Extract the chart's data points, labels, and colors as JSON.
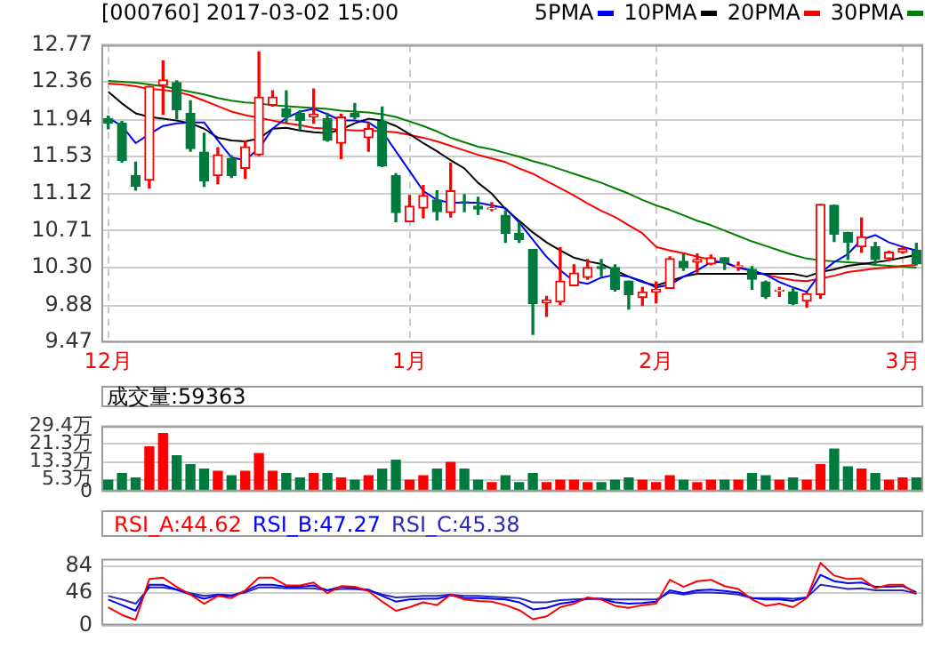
{
  "chart_data": [
    {
      "type": "candlestick",
      "title": "[000760] 2017-03-02 15:00",
      "legend": "top right",
      "grid": true,
      "marker": "none",
      "categories": [
        "12月",
        null,
        null,
        null,
        null,
        null,
        null,
        null,
        null,
        null,
        null,
        null,
        null,
        null,
        null,
        null,
        null,
        null,
        null,
        null,
        null,
        null,
        "1月",
        null,
        null,
        null,
        null,
        null,
        null,
        null,
        null,
        null,
        null,
        null,
        null,
        null,
        null,
        null,
        null,
        null,
        "2月",
        null,
        null,
        null,
        null,
        null,
        null,
        null,
        null,
        null,
        null,
        null,
        null,
        null,
        null,
        null,
        null,
        null,
        "3月",
        null
      ],
      "ylim": [
        9.47,
        12.77
      ],
      "yticks": [
        {
          "value": 9.47,
          "label": "9.47"
        },
        {
          "value": 9.88,
          "label": "9.88"
        },
        {
          "value": 10.3,
          "label": "10.30"
        },
        {
          "value": 10.71,
          "label": "10.71"
        },
        {
          "value": 11.12,
          "label": "11.12"
        },
        {
          "value": 11.53,
          "label": "11.53"
        },
        {
          "value": 11.94,
          "label": "11.94"
        },
        {
          "value": 12.36,
          "label": "12.36"
        },
        {
          "value": 12.77,
          "label": "12.77"
        }
      ],
      "ohlc": [
        [
          11.95,
          11.98,
          11.84,
          11.9
        ],
        [
          11.9,
          11.92,
          11.47,
          11.49
        ],
        [
          11.32,
          11.47,
          11.16,
          11.2
        ],
        [
          11.27,
          12.31,
          11.18,
          12.31
        ],
        [
          12.32,
          12.59,
          12.0,
          12.38
        ],
        [
          12.35,
          12.37,
          11.95,
          12.05
        ],
        [
          12.01,
          12.15,
          11.59,
          11.62
        ],
        [
          11.58,
          11.79,
          11.2,
          11.26
        ],
        [
          11.32,
          11.63,
          11.23,
          11.55
        ],
        [
          11.51,
          11.54,
          11.3,
          11.32
        ],
        [
          11.4,
          11.7,
          11.29,
          11.64
        ],
        [
          11.55,
          12.69,
          11.54,
          12.19
        ],
        [
          12.1,
          12.26,
          12.09,
          12.19
        ],
        [
          12.06,
          12.26,
          11.91,
          11.97
        ],
        [
          12.01,
          12.04,
          11.83,
          11.93
        ],
        [
          11.97,
          12.28,
          11.9,
          12.0
        ],
        [
          11.95,
          12.01,
          11.7,
          11.71
        ],
        [
          11.68,
          12.0,
          11.51,
          11.97
        ],
        [
          12.01,
          12.12,
          11.95,
          11.97
        ],
        [
          11.74,
          11.9,
          11.59,
          11.84
        ],
        [
          11.92,
          12.08,
          11.42,
          11.43
        ],
        [
          11.32,
          11.34,
          10.81,
          10.91
        ],
        [
          10.81,
          11.1,
          10.81,
          10.98
        ],
        [
          10.96,
          11.21,
          10.85,
          11.1
        ],
        [
          11.05,
          11.15,
          10.83,
          10.92
        ],
        [
          10.91,
          11.46,
          10.86,
          11.15
        ],
        [
          11.03,
          11.11,
          10.92,
          11.02
        ],
        [
          10.98,
          11.08,
          10.89,
          10.95
        ],
        [
          10.95,
          11.02,
          10.93,
          10.96
        ],
        [
          10.88,
          10.93,
          10.58,
          10.68
        ],
        [
          10.68,
          10.8,
          10.58,
          10.61
        ],
        [
          10.5,
          10.5,
          9.56,
          9.9
        ],
        [
          9.91,
          9.98,
          9.76,
          9.94
        ],
        [
          9.92,
          10.52,
          9.89,
          10.15
        ],
        [
          10.1,
          10.33,
          10.1,
          10.24
        ],
        [
          10.19,
          10.39,
          10.17,
          10.3
        ],
        [
          10.31,
          10.39,
          10.21,
          10.29
        ],
        [
          10.3,
          10.33,
          10.04,
          10.06
        ],
        [
          10.15,
          10.15,
          9.84,
          10.0
        ],
        [
          9.97,
          10.08,
          9.88,
          10.03
        ],
        [
          10.03,
          10.14,
          9.91,
          10.06
        ],
        [
          10.07,
          10.42,
          10.07,
          10.4
        ],
        [
          10.37,
          10.45,
          10.27,
          10.3
        ],
        [
          10.36,
          10.45,
          10.25,
          10.39
        ],
        [
          10.34,
          10.44,
          10.33,
          10.41
        ],
        [
          10.41,
          10.41,
          10.28,
          10.35
        ],
        [
          10.31,
          10.36,
          10.27,
          10.32
        ],
        [
          10.28,
          10.31,
          10.06,
          10.17
        ],
        [
          10.14,
          10.15,
          9.96,
          9.98
        ],
        [
          10.04,
          10.08,
          9.98,
          10.05
        ],
        [
          10.03,
          10.08,
          9.89,
          9.9
        ],
        [
          9.93,
          10.02,
          9.86,
          10.01
        ],
        [
          10.0,
          11.0,
          9.96,
          11.0
        ],
        [
          10.99,
          10.99,
          10.59,
          10.67
        ],
        [
          10.69,
          10.69,
          10.39,
          10.58
        ],
        [
          10.53,
          10.85,
          10.47,
          10.64
        ],
        [
          10.53,
          10.58,
          10.33,
          10.39
        ],
        [
          10.4,
          10.48,
          10.38,
          10.47
        ],
        [
          10.47,
          10.52,
          10.46,
          10.51
        ],
        [
          10.49,
          10.57,
          10.33,
          10.34
        ]
      ],
      "colors": [
        "#007a3d",
        "#007a3d",
        "#007a3d",
        "#ff0000",
        "#ff0000",
        "#007a3d",
        "#007a3d",
        "#007a3d",
        "#ff0000",
        "#007a3d",
        "#ff0000",
        "#ff0000",
        "#ff0000",
        "#007a3d",
        "#007a3d",
        "#ff0000",
        "#007a3d",
        "#ff0000",
        "#007a3d",
        "#ff0000",
        "#007a3d",
        "#007a3d",
        "#ff0000",
        "#ff0000",
        "#007a3d",
        "#ff0000",
        "#007a3d",
        "#007a3d",
        "#ff0000",
        "#007a3d",
        "#007a3d",
        "#007a3d",
        "#ff0000",
        "#ff0000",
        "#ff0000",
        "#ff0000",
        "#007a3d",
        "#007a3d",
        "#007a3d",
        "#ff0000",
        "#ff0000",
        "#ff0000",
        "#007a3d",
        "#ff0000",
        "#ff0000",
        "#007a3d",
        "#ff0000",
        "#007a3d",
        "#007a3d",
        "#ff0000",
        "#007a3d",
        "#ff0000",
        "#ff0000",
        "#007a3d",
        "#007a3d",
        "#ff0000",
        "#007a3d",
        "#ff0000",
        "#ff0000",
        "#007a3d"
      ],
      "series": [
        {
          "name": "5PMA",
          "type": "line",
          "color": "#0000ff",
          "values": [
            11.96,
            11.87,
            11.68,
            11.78,
            11.87,
            11.9,
            11.91,
            11.91,
            11.71,
            11.52,
            11.49,
            11.62,
            11.84,
            11.96,
            12.03,
            12.06,
            12.0,
            11.93,
            11.93,
            11.91,
            11.81,
            11.59,
            11.37,
            11.15,
            11.05,
            11.02,
            11.02,
            11.02,
            10.99,
            10.96,
            10.8,
            10.61,
            10.42,
            10.27,
            10.15,
            10.12,
            10.19,
            10.22,
            10.2,
            10.15,
            10.08,
            10.11,
            10.2,
            10.27,
            10.36,
            10.36,
            10.3,
            10.27,
            10.22,
            10.14,
            10.08,
            10.03,
            10.24,
            10.36,
            10.45,
            10.61,
            10.66,
            10.58,
            10.53,
            10.49
          ]
        },
        {
          "name": "10PMA",
          "type": "line",
          "color": "#000000",
          "values": [
            12.25,
            12.12,
            12.01,
            11.97,
            11.95,
            11.93,
            11.9,
            11.84,
            11.74,
            11.71,
            11.7,
            11.73,
            11.84,
            11.85,
            11.82,
            11.8,
            11.79,
            11.83,
            11.9,
            11.95,
            11.93,
            11.87,
            11.78,
            11.68,
            11.59,
            11.49,
            11.4,
            11.24,
            11.12,
            10.95,
            10.82,
            10.69,
            10.58,
            10.49,
            10.41,
            10.37,
            10.34,
            10.27,
            10.2,
            10.14,
            10.1,
            10.15,
            10.2,
            10.23,
            10.23,
            10.23,
            10.23,
            10.23,
            10.23,
            10.23,
            10.23,
            10.2,
            10.25,
            10.28,
            10.32,
            10.34,
            10.36,
            10.38,
            10.41,
            10.44
          ]
        },
        {
          "name": "20PMA",
          "type": "line",
          "color": "#ff0000",
          "values": [
            12.34,
            12.33,
            12.31,
            12.28,
            12.27,
            12.25,
            12.21,
            12.15,
            12.09,
            12.03,
            11.99,
            11.96,
            11.93,
            11.9,
            11.88,
            11.85,
            11.84,
            11.83,
            11.82,
            11.82,
            11.81,
            11.8,
            11.77,
            11.74,
            11.7,
            11.65,
            11.6,
            11.55,
            11.51,
            11.47,
            11.4,
            11.34,
            11.26,
            11.18,
            11.1,
            11.01,
            10.93,
            10.86,
            10.77,
            10.68,
            10.53,
            10.49,
            10.46,
            10.42,
            10.39,
            10.35,
            10.3,
            10.26,
            10.22,
            10.19,
            10.16,
            10.15,
            10.18,
            10.21,
            10.25,
            10.27,
            10.29,
            10.3,
            10.32,
            10.33
          ]
        },
        {
          "name": "30PMA",
          "type": "line",
          "color": "#008000",
          "values": [
            12.37,
            12.36,
            12.35,
            12.33,
            12.31,
            12.28,
            12.25,
            12.22,
            12.18,
            12.15,
            12.13,
            12.12,
            12.1,
            12.09,
            12.08,
            12.07,
            12.06,
            12.04,
            12.03,
            12.02,
            12.0,
            11.97,
            11.92,
            11.87,
            11.81,
            11.74,
            11.69,
            11.64,
            11.61,
            11.57,
            11.53,
            11.48,
            11.44,
            11.39,
            11.34,
            11.29,
            11.24,
            11.18,
            11.12,
            11.05,
            10.99,
            10.94,
            10.88,
            10.82,
            10.77,
            10.71,
            10.65,
            10.59,
            10.54,
            10.49,
            10.44,
            10.4,
            10.38,
            10.37,
            10.36,
            10.35,
            10.33,
            10.32,
            10.31,
            10.3
          ]
        }
      ]
    },
    {
      "type": "bar",
      "title": "成交量:59363",
      "grid": "y",
      "tick_labels": "y",
      "categories": [
        null,
        null,
        null,
        null,
        null,
        null,
        null,
        null,
        null,
        null,
        null,
        null,
        null,
        null,
        null,
        null,
        null,
        null,
        null,
        null,
        null,
        null,
        null,
        null,
        null,
        null,
        null,
        null,
        null,
        null,
        null,
        null,
        null,
        null,
        null,
        null,
        null,
        null,
        null,
        null,
        null,
        null,
        null,
        null,
        null,
        null,
        null,
        null,
        null,
        null,
        null,
        null,
        null,
        null,
        null,
        null,
        null,
        null,
        null,
        null
      ],
      "ylim": [
        0,
        29.4
      ],
      "yticks": [
        0,
        {
          "value": 5.3,
          "label": "5.3万"
        },
        {
          "value": 13.3,
          "label": "13.3万"
        },
        {
          "value": 21.3,
          "label": "21.3万"
        },
        {
          "value": 29.4,
          "label": "29.4万"
        }
      ],
      "values": [
        5,
        8,
        6,
        20,
        26,
        16,
        12,
        10,
        9,
        7,
        9,
        17,
        9,
        8,
        6,
        8,
        8,
        6,
        5,
        7,
        10,
        14,
        5,
        7,
        10,
        13,
        10,
        5,
        4,
        7,
        4,
        8,
        4,
        5,
        5,
        4,
        4,
        5,
        6,
        5,
        4,
        7,
        5,
        4,
        5,
        5,
        5,
        8,
        7,
        5,
        6,
        5,
        12,
        19,
        11,
        10,
        8,
        5,
        6,
        6
      ],
      "colors": [
        "#007a3d",
        "#007a3d",
        "#007a3d",
        "#ff0000",
        "#ff0000",
        "#007a3d",
        "#007a3d",
        "#007a3d",
        "#ff0000",
        "#007a3d",
        "#ff0000",
        "#ff0000",
        "#ff0000",
        "#007a3d",
        "#007a3d",
        "#ff0000",
        "#007a3d",
        "#ff0000",
        "#007a3d",
        "#ff0000",
        "#007a3d",
        "#007a3d",
        "#ff0000",
        "#ff0000",
        "#007a3d",
        "#ff0000",
        "#007a3d",
        "#007a3d",
        "#ff0000",
        "#007a3d",
        "#007a3d",
        "#007a3d",
        "#ff0000",
        "#ff0000",
        "#ff0000",
        "#ff0000",
        "#007a3d",
        "#007a3d",
        "#007a3d",
        "#ff0000",
        "#ff0000",
        "#ff0000",
        "#007a3d",
        "#ff0000",
        "#ff0000",
        "#007a3d",
        "#ff0000",
        "#007a3d",
        "#007a3d",
        "#ff0000",
        "#007a3d",
        "#ff0000",
        "#ff0000",
        "#007a3d",
        "#007a3d",
        "#ff0000",
        "#007a3d",
        "#ff0000",
        "#ff0000",
        "#007a3d"
      ]
    },
    {
      "type": "line",
      "legend": "top left",
      "grid": "y",
      "tick_labels": "y",
      "marker": "none",
      "categories": [
        null,
        null,
        null,
        null,
        null,
        null,
        null,
        null,
        null,
        null,
        null,
        null,
        null,
        null,
        null,
        null,
        null,
        null,
        null,
        null,
        null,
        null,
        null,
        null,
        null,
        null,
        null,
        null,
        null,
        null,
        null,
        null,
        null,
        null,
        null,
        null,
        null,
        null,
        null,
        null,
        null,
        null,
        null,
        null,
        null,
        null,
        null,
        null,
        null,
        null,
        null,
        null,
        null,
        null,
        null,
        null,
        null,
        null,
        null,
        null
      ],
      "ylim": [
        0,
        95
      ],
      "yticks": [
        0,
        46,
        84
      ],
      "series": [
        {
          "name": "RSI_A:44.62",
          "color": "#ff0000",
          "values": [
            26,
            15,
            8,
            66,
            68,
            55,
            44,
            31,
            42,
            39,
            50,
            68,
            68,
            57,
            57,
            61,
            46,
            56,
            55,
            49,
            34,
            21,
            26,
            33,
            29,
            44,
            37,
            35,
            34,
            29,
            22,
            9,
            13,
            26,
            31,
            40,
            37,
            28,
            25,
            29,
            31,
            65,
            55,
            63,
            65,
            56,
            52,
            37,
            28,
            31,
            26,
            39,
            89,
            71,
            66,
            67,
            53,
            58,
            58,
            44.62
          ]
        },
        {
          "name": "RSI_B:47.27",
          "color": "#0000ff",
          "values": [
            37,
            29,
            21,
            58,
            58,
            51,
            44,
            38,
            43,
            42,
            49,
            58,
            58,
            55,
            55,
            57,
            50,
            55,
            53,
            51,
            42,
            34,
            37,
            38,
            38,
            43,
            39,
            39,
            38,
            37,
            33,
            23,
            25,
            31,
            34,
            38,
            38,
            33,
            31,
            32,
            34,
            50,
            46,
            50,
            51,
            49,
            47,
            39,
            37,
            37,
            35,
            40,
            72,
            63,
            60,
            61,
            55,
            55,
            56,
            47.27
          ]
        },
        {
          "name": "RSI_C:45.38",
          "color": "#2a2ab8",
          "values": [
            42,
            37,
            31,
            54,
            54,
            51,
            46,
            42,
            44,
            43,
            47,
            54,
            54,
            53,
            53,
            53,
            50,
            52,
            52,
            50,
            44,
            40,
            41,
            42,
            42,
            44,
            42,
            42,
            41,
            40,
            39,
            33,
            33,
            36,
            37,
            38,
            38,
            37,
            37,
            37,
            37,
            47,
            44,
            47,
            47,
            46,
            44,
            39,
            39,
            39,
            38,
            40,
            58,
            55,
            52,
            53,
            50,
            50,
            50,
            45.38
          ]
        }
      ]
    }
  ]
}
